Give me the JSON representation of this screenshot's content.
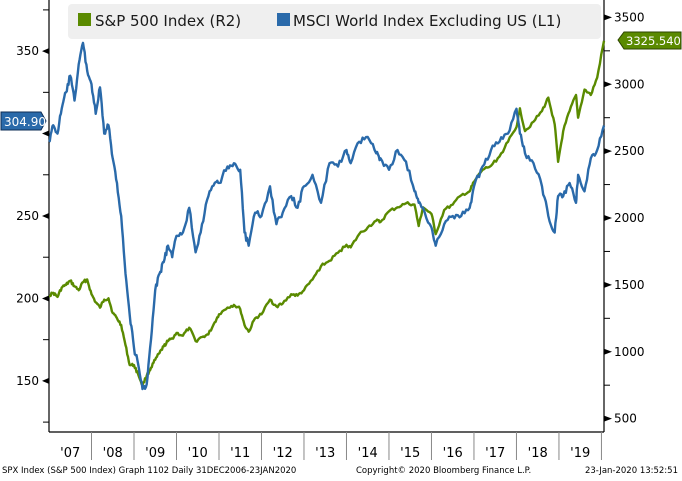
{
  "chart_data": {
    "type": "line",
    "title": "",
    "legend": {
      "placement": "top",
      "entries": [
        {
          "label": "S&P 500 Index (R2)",
          "color": "#5a8a00"
        },
        {
          "label": "MSCI World Index Excluding US (L1)",
          "color": "#2a6aaa"
        }
      ]
    },
    "x_tick_labels": [
      "'07",
      "'08",
      "'09",
      "'10",
      "'11",
      "'12",
      "'13",
      "'14",
      "'15",
      "'16",
      "'17",
      "'18",
      "'19"
    ],
    "x_range": [
      2007.0,
      2020.06
    ],
    "left_axis": {
      "ticks": [
        150,
        200,
        250,
        300,
        350
      ],
      "minor_ticks": [
        125,
        175,
        225,
        275,
        325,
        375
      ],
      "range": [
        119,
        381
      ],
      "last_value_label": "304.90"
    },
    "right_axis": {
      "ticks": [
        500,
        1000,
        1500,
        2000,
        2500,
        3500,
        3000
      ],
      "minor_ticks": [
        750,
        1250,
        1750,
        2250,
        2750,
        3250
      ],
      "range": [
        400,
        3630
      ],
      "last_value_label": "3325.540"
    },
    "series": [
      {
        "name": "S&P 500 Index",
        "axis": "right",
        "color": "#5a8a00",
        "x": [
          2007.0,
          2007.1,
          2007.2,
          2007.3,
          2007.4,
          2007.5,
          2007.6,
          2007.7,
          2007.8,
          2007.9,
          2008.0,
          2008.1,
          2008.2,
          2008.3,
          2008.4,
          2008.5,
          2008.6,
          2008.7,
          2008.8,
          2008.9,
          2009.0,
          2009.1,
          2009.2,
          2009.3,
          2009.4,
          2009.5,
          2009.6,
          2009.7,
          2009.8,
          2009.9,
          2010.0,
          2010.15,
          2010.3,
          2010.45,
          2010.6,
          2010.75,
          2010.9,
          2011.0,
          2011.2,
          2011.35,
          2011.5,
          2011.6,
          2011.7,
          2011.85,
          2012.0,
          2012.2,
          2012.35,
          2012.5,
          2012.7,
          2012.85,
          2013.0,
          2013.2,
          2013.4,
          2013.6,
          2013.8,
          2014.0,
          2014.1,
          2014.3,
          2014.5,
          2014.7,
          2014.8,
          2015.0,
          2015.2,
          2015.4,
          2015.6,
          2015.7,
          2015.8,
          2016.0,
          2016.1,
          2016.3,
          2016.5,
          2016.7,
          2016.9,
          2017.0,
          2017.2,
          2017.4,
          2017.6,
          2017.8,
          2018.0,
          2018.08,
          2018.2,
          2018.4,
          2018.6,
          2018.75,
          2018.9,
          2018.98,
          2019.1,
          2019.25,
          2019.4,
          2019.45,
          2019.6,
          2019.75,
          2019.9,
          2020.06
        ],
        "values": [
          1420,
          1440,
          1410,
          1480,
          1500,
          1530,
          1490,
          1460,
          1520,
          1540,
          1430,
          1370,
          1330,
          1390,
          1400,
          1290,
          1250,
          1200,
          1050,
          900,
          900,
          830,
          750,
          820,
          880,
          940,
          990,
          1040,
          1080,
          1100,
          1140,
          1120,
          1180,
          1080,
          1110,
          1130,
          1220,
          1280,
          1330,
          1350,
          1320,
          1200,
          1150,
          1250,
          1280,
          1390,
          1340,
          1360,
          1430,
          1420,
          1460,
          1540,
          1640,
          1680,
          1740,
          1800,
          1780,
          1880,
          1930,
          1980,
          1970,
          2050,
          2080,
          2110,
          2100,
          1940,
          2080,
          2030,
          1880,
          2060,
          2100,
          2170,
          2200,
          2270,
          2360,
          2390,
          2460,
          2570,
          2680,
          2820,
          2650,
          2720,
          2800,
          2900,
          2700,
          2420,
          2650,
          2800,
          2920,
          2750,
          2960,
          2920,
          3050,
          3325
        ]
      },
      {
        "name": "MSCI World Index Excluding US",
        "axis": "left",
        "color": "#2a6aaa",
        "x": [
          2007.0,
          2007.1,
          2007.2,
          2007.3,
          2007.4,
          2007.5,
          2007.6,
          2007.7,
          2007.8,
          2007.9,
          2008.0,
          2008.1,
          2008.2,
          2008.3,
          2008.4,
          2008.5,
          2008.6,
          2008.7,
          2008.8,
          2008.9,
          2009.0,
          2009.1,
          2009.2,
          2009.3,
          2009.4,
          2009.5,
          2009.6,
          2009.7,
          2009.8,
          2009.9,
          2010.0,
          2010.15,
          2010.3,
          2010.45,
          2010.6,
          2010.75,
          2010.9,
          2011.0,
          2011.2,
          2011.35,
          2011.5,
          2011.6,
          2011.7,
          2011.85,
          2012.0,
          2012.2,
          2012.35,
          2012.5,
          2012.7,
          2012.85,
          2013.0,
          2013.2,
          2013.4,
          2013.6,
          2013.8,
          2014.0,
          2014.1,
          2014.3,
          2014.5,
          2014.7,
          2014.8,
          2015.0,
          2015.2,
          2015.4,
          2015.6,
          2015.7,
          2015.8,
          2016.0,
          2016.1,
          2016.3,
          2016.5,
          2016.7,
          2016.9,
          2017.0,
          2017.2,
          2017.4,
          2017.6,
          2017.8,
          2018.0,
          2018.08,
          2018.2,
          2018.4,
          2018.6,
          2018.75,
          2018.9,
          2018.98,
          2019.1,
          2019.25,
          2019.4,
          2019.45,
          2019.6,
          2019.75,
          2019.9,
          2020.06
        ],
        "values": [
          295,
          305,
          300,
          315,
          325,
          335,
          320,
          342,
          355,
          338,
          330,
          312,
          328,
          300,
          305,
          285,
          270,
          250,
          215,
          190,
          170,
          160,
          145,
          148,
          175,
          205,
          215,
          222,
          232,
          225,
          238,
          240,
          255,
          228,
          245,
          262,
          270,
          270,
          280,
          282,
          278,
          240,
          232,
          252,
          250,
          268,
          245,
          252,
          262,
          255,
          268,
          275,
          258,
          282,
          280,
          290,
          282,
          295,
          298,
          288,
          285,
          278,
          290,
          283,
          265,
          258,
          255,
          243,
          232,
          245,
          250,
          250,
          255,
          268,
          280,
          290,
          295,
          300,
          315,
          300,
          288,
          282,
          268,
          250,
          240,
          262,
          262,
          270,
          258,
          275,
          265,
          285,
          290,
          304.9
        ]
      }
    ]
  },
  "footer": {
    "left": "SPX Index (S&P 500 Index) Graph 1102  Daily 31DEC2006-23JAN2020",
    "center": "Copyright© 2020 Bloomberg Finance L.P.",
    "right": "23-Jan-2020 13:52:51"
  }
}
